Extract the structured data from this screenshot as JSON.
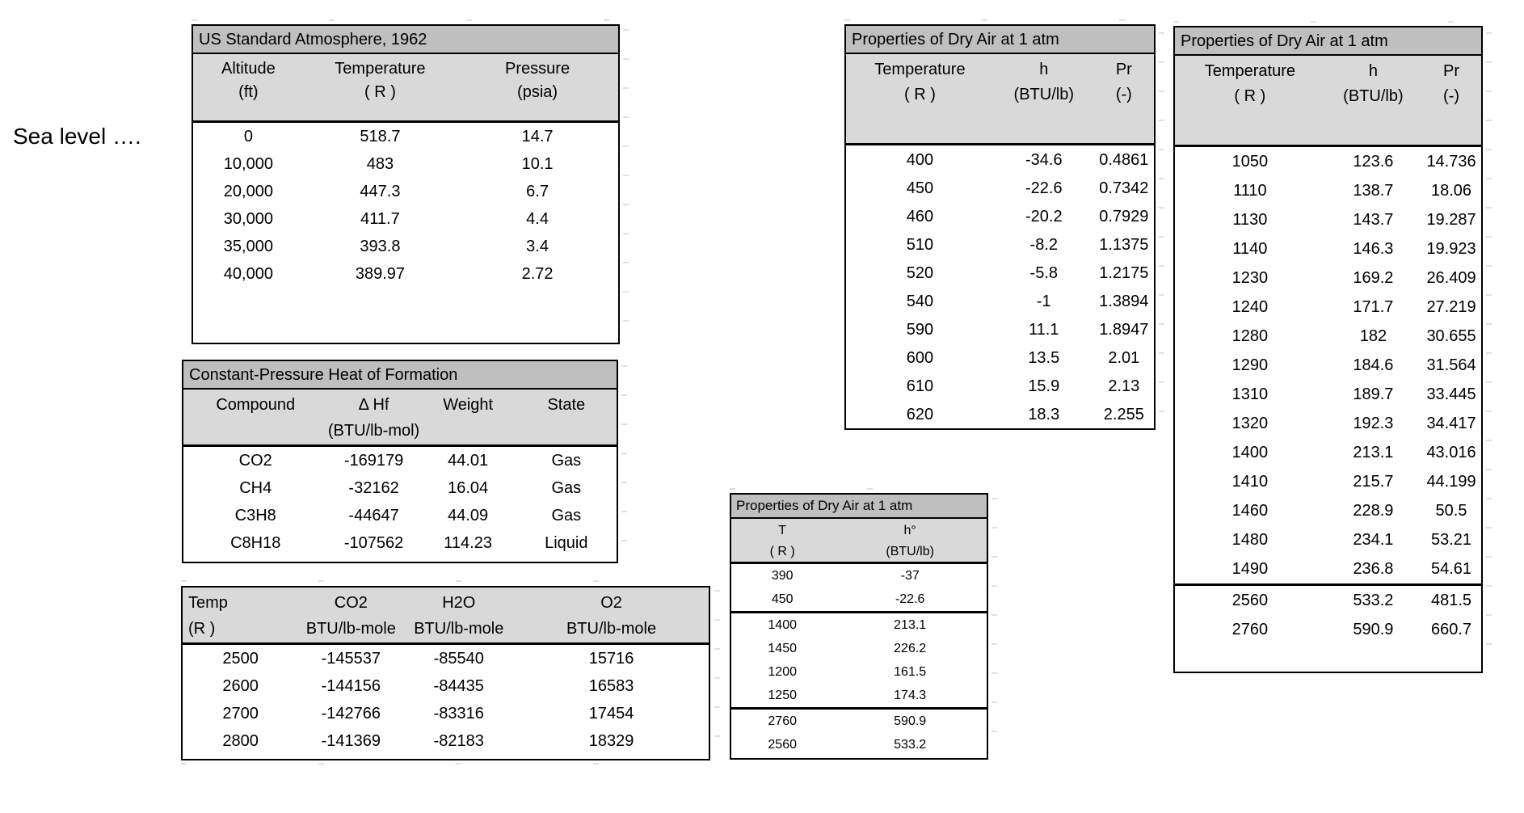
{
  "sea_level_label": "Sea level ….",
  "colors": {
    "title_band": "#bfbfbf",
    "header_band": "#d9d9d9",
    "border": "#000000",
    "text": "#000000"
  },
  "tables": {
    "us_atmosphere": {
      "title": "US Standard Atmosphere, 1962",
      "columns": [
        {
          "label": "Altitude",
          "unit": "(ft)"
        },
        {
          "label": "Temperature",
          "unit": "( R )"
        },
        {
          "label": "Pressure",
          "unit": "(psia)"
        }
      ],
      "row_groups": [
        [
          [
            "0",
            "518.7",
            "14.7"
          ],
          [
            "10,000",
            "483",
            "10.1"
          ],
          [
            "20,000",
            "447.3",
            "6.7"
          ],
          [
            "30,000",
            "411.7",
            "4.4"
          ],
          [
            "35,000",
            "393.8",
            "3.4"
          ],
          [
            "40,000",
            "389.97",
            "2.72"
          ]
        ]
      ]
    },
    "heat_of_formation": {
      "title": "Constant-Pressure Heat of Formation",
      "columns": [
        {
          "label": "Compound",
          "unit": ""
        },
        {
          "label": "Δ Hf",
          "unit": "(BTU/lb-mol)"
        },
        {
          "label": "Weight",
          "unit": ""
        },
        {
          "label": "State",
          "unit": ""
        }
      ],
      "row_groups": [
        [
          [
            "CO2",
            "-169179",
            "44.01",
            "Gas"
          ],
          [
            "CH4",
            "-32162",
            "16.04",
            "Gas"
          ],
          [
            "C3H8",
            "-44647",
            "44.09",
            "Gas"
          ],
          [
            "C8H18",
            "-107562",
            "114.23",
            "Liquid"
          ]
        ]
      ]
    },
    "combustion_products": {
      "columns": [
        {
          "label": "Temp",
          "unit": "(R )"
        },
        {
          "label": "CO2",
          "unit": "BTU/lb-mole"
        },
        {
          "label": "H2O",
          "unit": "BTU/lb-mole"
        },
        {
          "label": "O2",
          "unit": "BTU/lb-mole"
        }
      ],
      "row_groups": [
        [
          [
            "2500",
            "-145537",
            "-85540",
            "15716"
          ],
          [
            "2600",
            "-144156",
            "-84435",
            "16583"
          ],
          [
            "2700",
            "-142766",
            "-83316",
            "17454"
          ],
          [
            "2800",
            "-141369",
            "-82183",
            "18329"
          ]
        ]
      ]
    },
    "dry_air_reference": {
      "title": "Properties of Dry Air at 1 atm",
      "columns": [
        {
          "label": "T",
          "unit": "( R )"
        },
        {
          "label": "h°",
          "unit": "(BTU/lb)"
        }
      ],
      "row_groups": [
        [
          [
            "390",
            "-37"
          ],
          [
            "450",
            "-22.6"
          ]
        ],
        [
          [
            "1400",
            "213.1"
          ],
          [
            "1450",
            "226.2"
          ],
          [
            "1200",
            "161.5"
          ],
          [
            "1250",
            "174.3"
          ]
        ],
        [
          [
            "2760",
            "590.9"
          ],
          [
            "2560",
            "533.2"
          ]
        ]
      ]
    },
    "dry_air_low_temp": {
      "title": "Properties of Dry Air at 1 atm",
      "columns": [
        {
          "label": "Temperature",
          "unit": "( R )"
        },
        {
          "label": "h",
          "unit": "(BTU/lb)"
        },
        {
          "label": "Pr",
          "unit": "(-)"
        }
      ],
      "row_groups": [
        [
          [
            "400",
            "-34.6",
            "0.4861"
          ],
          [
            "450",
            "-22.6",
            "0.7342"
          ],
          [
            "460",
            "-20.2",
            "0.7929"
          ],
          [
            "510",
            "-8.2",
            "1.1375"
          ],
          [
            "520",
            "-5.8",
            "1.2175"
          ],
          [
            "540",
            "-1",
            "1.3894"
          ],
          [
            "590",
            "11.1",
            "1.8947"
          ],
          [
            "600",
            "13.5",
            "2.01"
          ],
          [
            "610",
            "15.9",
            "2.13"
          ],
          [
            "620",
            "18.3",
            "2.255"
          ]
        ]
      ]
    },
    "dry_air_high_temp": {
      "title": "Properties of Dry Air at 1 atm",
      "columns": [
        {
          "label": "Temperature",
          "unit": "( R )"
        },
        {
          "label": "h",
          "unit": "(BTU/lb)"
        },
        {
          "label": "Pr",
          "unit": "(-)"
        }
      ],
      "row_groups": [
        [
          [
            "1050",
            "123.6",
            "14.736"
          ],
          [
            "1110",
            "138.7",
            "18.06"
          ],
          [
            "1130",
            "143.7",
            "19.287"
          ],
          [
            "1140",
            "146.3",
            "19.923"
          ],
          [
            "1230",
            "169.2",
            "26.409"
          ],
          [
            "1240",
            "171.7",
            "27.219"
          ],
          [
            "1280",
            "182",
            "30.655"
          ],
          [
            "1290",
            "184.6",
            "31.564"
          ],
          [
            "1310",
            "189.7",
            "33.445"
          ],
          [
            "1320",
            "192.3",
            "34.417"
          ],
          [
            "1400",
            "213.1",
            "43.016"
          ],
          [
            "1410",
            "215.7",
            "44.199"
          ],
          [
            "1460",
            "228.9",
            "50.5"
          ],
          [
            "1480",
            "234.1",
            "53.21"
          ],
          [
            "1490",
            "236.8",
            "54.61"
          ]
        ],
        [
          [
            "2560",
            "533.2",
            "481.5"
          ],
          [
            "2760",
            "590.9",
            "660.7"
          ]
        ]
      ]
    }
  }
}
